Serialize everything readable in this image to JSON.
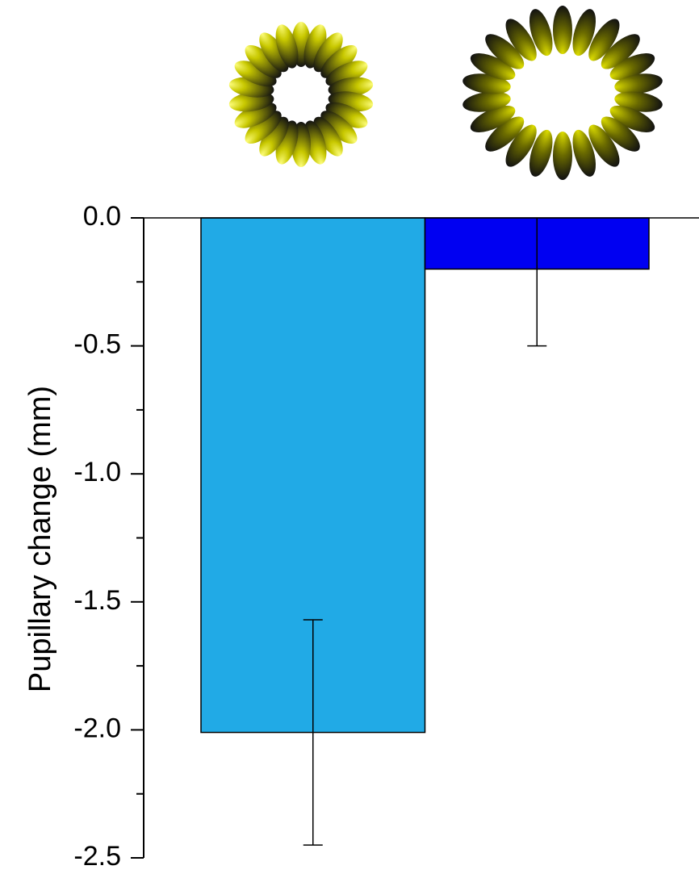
{
  "chart_data": {
    "type": "bar",
    "y_label": "Pupillary change (mm)",
    "categories": [
      null,
      null
    ],
    "values": [
      -2.01,
      -0.2
    ],
    "errors": [
      0.44,
      0.3
    ],
    "colors": [
      "#21aae6",
      "#0000f2"
    ],
    "ylim": [
      -2.5,
      0
    ],
    "yticks": [
      {
        "value": 0,
        "label": "0.0"
      },
      -0.5,
      {
        "value": -1,
        "label": "-1.0"
      },
      -1.5,
      {
        "value": -2,
        "label": "-2.0"
      },
      -2.5
    ],
    "minor_yticks": [
      -0.25,
      -0.75,
      -1.25,
      -1.75,
      -2.25
    ]
  }
}
